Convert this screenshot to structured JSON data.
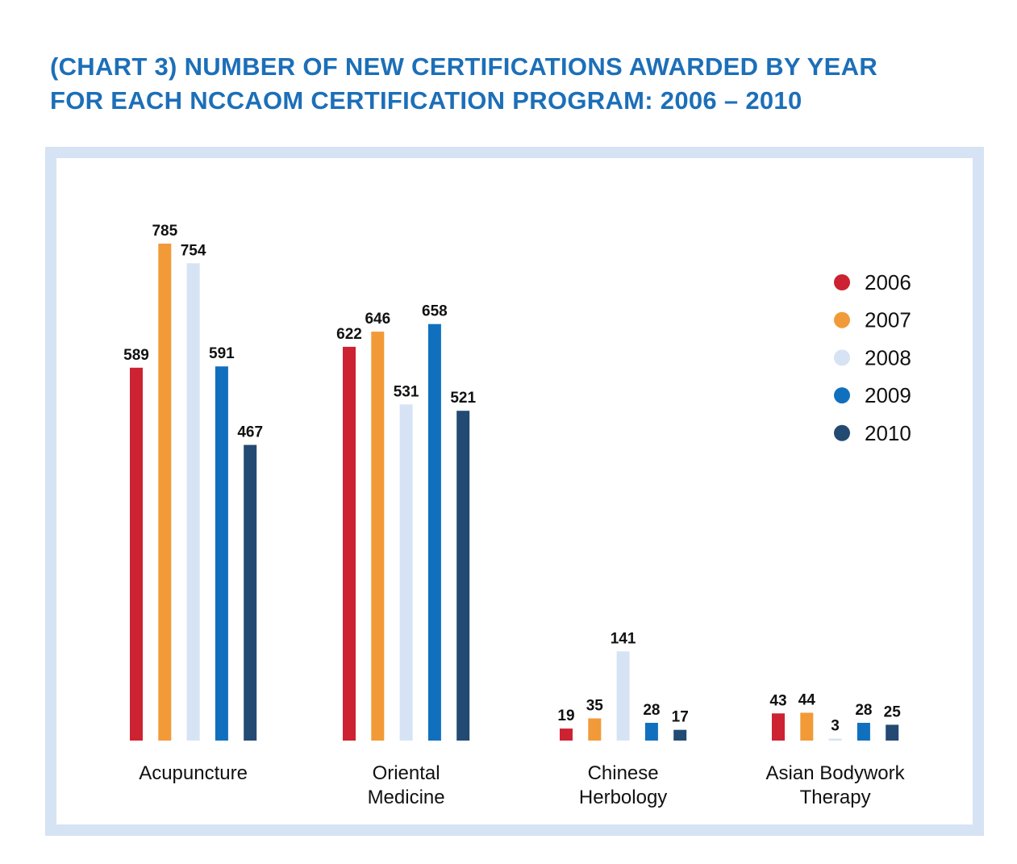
{
  "title_lines": [
    "(CHART 3) NUMBER OF NEW CERTIFICATIONS AWARDED BY YEAR",
    "FOR EACH NCCAOM CERTIFICATION PROGRAM: 2006 – 2010"
  ],
  "colors": {
    "title": "#1c6fb8",
    "frame_border": "#d6e3f4",
    "series": [
      "#cd2232",
      "#f29a38",
      "#d6e3f4",
      "#1170be",
      "#234a72"
    ]
  },
  "chart_data": {
    "type": "bar",
    "title": "(CHART 3) NUMBER OF NEW CERTIFICATIONS AWARDED BY YEAR FOR EACH NCCAOM CERTIFICATION PROGRAM: 2006 – 2010",
    "categories": [
      [
        "Acupuncture"
      ],
      [
        "Oriental",
        "Medicine"
      ],
      [
        "Chinese",
        "Herbology"
      ],
      [
        "Asian Bodywork",
        "Therapy"
      ]
    ],
    "series": [
      {
        "name": "2006",
        "values": [
          589,
          622,
          19,
          43
        ]
      },
      {
        "name": "2007",
        "values": [
          785,
          646,
          35,
          44
        ]
      },
      {
        "name": "2008",
        "values": [
          754,
          531,
          141,
          3
        ]
      },
      {
        "name": "2009",
        "values": [
          591,
          658,
          28,
          28
        ]
      },
      {
        "name": "2010",
        "values": [
          467,
          521,
          17,
          25
        ]
      }
    ],
    "ylim": [
      0,
      785
    ],
    "grid": false,
    "axes_shown": false,
    "legend_position": "top-right",
    "data_labels": true
  }
}
